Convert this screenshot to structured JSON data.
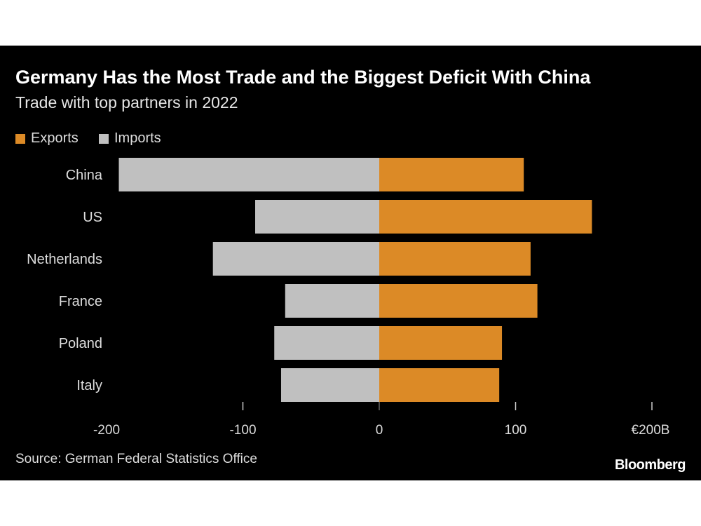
{
  "chart_data": {
    "type": "bar",
    "orientation": "horizontal-diverging",
    "title": "Germany Has the Most Trade and the Biggest Deficit With China",
    "subtitle": "Trade with top partners in 2022",
    "categories": [
      "China",
      "US",
      "Netherlands",
      "France",
      "Poland",
      "Italy"
    ],
    "series": [
      {
        "name": "Exports",
        "color": "#dc8a26",
        "values": [
          106,
          156,
          111,
          116,
          90,
          88
        ]
      },
      {
        "name": "Imports",
        "color": "#c0c0c0",
        "values": [
          -191,
          -91,
          -122,
          -69,
          -77,
          -72
        ]
      }
    ],
    "xlim": [
      -200,
      200
    ],
    "xticks": [
      -200,
      -100,
      0,
      100,
      200
    ],
    "xtick_labels": [
      "-200",
      "-100",
      "0",
      "100",
      "€200B"
    ],
    "legend": "top-left",
    "source": "Source: German Federal Statistics Office",
    "brand": "Bloomberg"
  }
}
